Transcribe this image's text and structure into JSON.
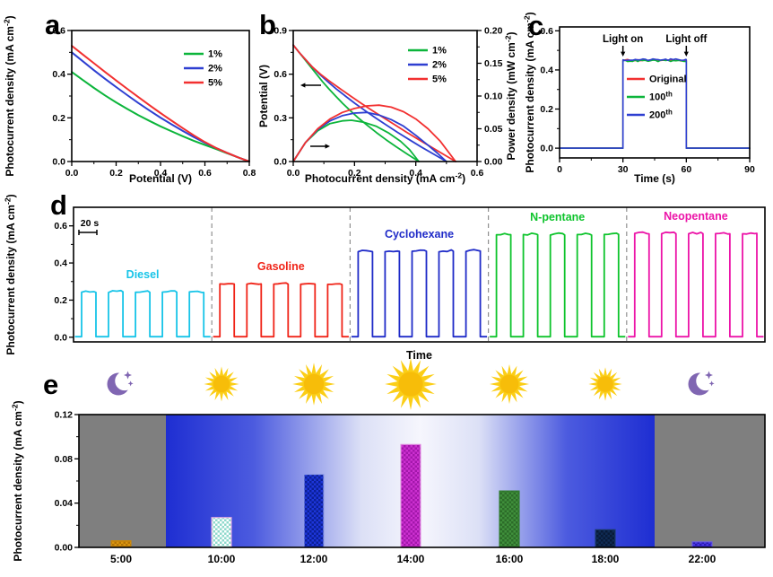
{
  "figure": {
    "panel_letters": [
      "a",
      "b",
      "c",
      "d",
      "e"
    ]
  },
  "chart_data": [
    {
      "panel_label": "a",
      "type": "line",
      "xlabel": "Potential (V)",
      "ylabel": "Photocurrent density (mA cm^{-2})",
      "xlim": [
        0,
        0.8
      ],
      "ylim": [
        0,
        0.6
      ],
      "xticks": [
        0,
        0.2,
        0.4,
        0.6,
        0.8
      ],
      "xtick_labels": [
        "0.0",
        "0.2",
        "0.4",
        "0.6",
        "0.8"
      ],
      "yticks": [
        0,
        0.2,
        0.4,
        0.6
      ],
      "ytick_labels": [
        "0.0",
        "0.2",
        "0.4",
        "0.6"
      ],
      "legend_position": "upper-right",
      "grid": false,
      "series": [
        {
          "name": "1%",
          "color": "#0CB53B",
          "points": [
            [
              0,
              0.41
            ],
            [
              0.05,
              0.373
            ],
            [
              0.1,
              0.337
            ],
            [
              0.15,
              0.303
            ],
            [
              0.2,
              0.271
            ],
            [
              0.25,
              0.241
            ],
            [
              0.3,
              0.212
            ],
            [
              0.35,
              0.186
            ],
            [
              0.4,
              0.161
            ],
            [
              0.45,
              0.138
            ],
            [
              0.5,
              0.116
            ],
            [
              0.55,
              0.095
            ],
            [
              0.6,
              0.076
            ],
            [
              0.65,
              0.057
            ],
            [
              0.7,
              0.038
            ],
            [
              0.75,
              0.019
            ],
            [
              0.8,
              0.0
            ]
          ]
        },
        {
          "name": "2%",
          "color": "#2E3FD1",
          "points": [
            [
              0,
              0.5
            ],
            [
              0.05,
              0.459
            ],
            [
              0.1,
              0.418
            ],
            [
              0.15,
              0.379
            ],
            [
              0.2,
              0.341
            ],
            [
              0.25,
              0.304
            ],
            [
              0.3,
              0.268
            ],
            [
              0.35,
              0.234
            ],
            [
              0.4,
              0.201
            ],
            [
              0.45,
              0.17
            ],
            [
              0.5,
              0.14
            ],
            [
              0.55,
              0.112
            ],
            [
              0.6,
              0.086
            ],
            [
              0.65,
              0.062
            ],
            [
              0.7,
              0.04
            ],
            [
              0.75,
              0.019
            ],
            [
              0.8,
              0.0
            ]
          ]
        },
        {
          "name": "5%",
          "color": "#F23030",
          "points": [
            [
              0,
              0.53
            ],
            [
              0.05,
              0.49
            ],
            [
              0.1,
              0.45
            ],
            [
              0.15,
              0.41
            ],
            [
              0.2,
              0.371
            ],
            [
              0.25,
              0.333
            ],
            [
              0.3,
              0.295
            ],
            [
              0.35,
              0.258
            ],
            [
              0.4,
              0.222
            ],
            [
              0.45,
              0.187
            ],
            [
              0.5,
              0.153
            ],
            [
              0.55,
              0.12
            ],
            [
              0.6,
              0.089
            ],
            [
              0.65,
              0.062
            ],
            [
              0.7,
              0.04
            ],
            [
              0.75,
              0.019
            ],
            [
              0.8,
              0.0
            ]
          ]
        }
      ]
    },
    {
      "panel_label": "b",
      "type": "line-dual-axis",
      "xlabel": "Photocurrent density (mA cm^{-2})",
      "ylabel_left": "Potential (V)",
      "ylabel_right": "Power density (mW cm^{-2})",
      "xlim": [
        0,
        0.6
      ],
      "ylim_left": [
        0,
        0.9
      ],
      "ylim_right": [
        0,
        0.2
      ],
      "xticks": [
        0,
        0.2,
        0.4,
        0.6
      ],
      "xtick_labels": [
        "0.0",
        "0.2",
        "0.4",
        "0.6"
      ],
      "yticks_left": [
        0,
        0.3,
        0.6,
        0.9
      ],
      "ytick_labels_left": [
        "0.0",
        "0.3",
        "0.6",
        "0.9"
      ],
      "yticks_right": [
        0,
        0.05,
        0.1,
        0.15,
        0.2
      ],
      "ytick_labels_right": [
        "0.00",
        "0.05",
        "0.10",
        "0.15",
        "0.20"
      ],
      "potential_series": [
        {
          "name": "1%",
          "color": "#0CB53B",
          "points": [
            [
              0,
              0.8
            ],
            [
              0.019,
              0.75
            ],
            [
              0.038,
              0.7
            ],
            [
              0.057,
              0.65
            ],
            [
              0.076,
              0.6
            ],
            [
              0.095,
              0.55
            ],
            [
              0.116,
              0.5
            ],
            [
              0.138,
              0.45
            ],
            [
              0.161,
              0.4
            ],
            [
              0.186,
              0.35
            ],
            [
              0.212,
              0.3
            ],
            [
              0.241,
              0.25
            ],
            [
              0.271,
              0.2
            ],
            [
              0.303,
              0.15
            ],
            [
              0.337,
              0.1
            ],
            [
              0.373,
              0.05
            ],
            [
              0.41,
              0.0
            ]
          ]
        },
        {
          "name": "2%",
          "color": "#2E3FD1",
          "points": [
            [
              0,
              0.8
            ],
            [
              0.019,
              0.75
            ],
            [
              0.04,
              0.7
            ],
            [
              0.062,
              0.65
            ],
            [
              0.086,
              0.6
            ],
            [
              0.112,
              0.55
            ],
            [
              0.14,
              0.5
            ],
            [
              0.17,
              0.45
            ],
            [
              0.201,
              0.4
            ],
            [
              0.234,
              0.35
            ],
            [
              0.268,
              0.3
            ],
            [
              0.304,
              0.25
            ],
            [
              0.341,
              0.2
            ],
            [
              0.379,
              0.15
            ],
            [
              0.418,
              0.1
            ],
            [
              0.459,
              0.05
            ],
            [
              0.5,
              0.0
            ]
          ]
        },
        {
          "name": "5%",
          "color": "#F23030",
          "points": [
            [
              0,
              0.8
            ],
            [
              0.019,
              0.75
            ],
            [
              0.04,
              0.7
            ],
            [
              0.062,
              0.65
            ],
            [
              0.089,
              0.6
            ],
            [
              0.12,
              0.55
            ],
            [
              0.153,
              0.5
            ],
            [
              0.187,
              0.45
            ],
            [
              0.222,
              0.4
            ],
            [
              0.258,
              0.35
            ],
            [
              0.295,
              0.3
            ],
            [
              0.333,
              0.25
            ],
            [
              0.371,
              0.2
            ],
            [
              0.41,
              0.15
            ],
            [
              0.45,
              0.1
            ],
            [
              0.49,
              0.05
            ],
            [
              0.53,
              0.0
            ]
          ]
        }
      ],
      "power_series": [
        {
          "name": "1%",
          "color": "#0CB53B",
          "points": [
            [
              0,
              0
            ],
            [
              0.04,
              0.029
            ],
            [
              0.08,
              0.047
            ],
            [
              0.12,
              0.058
            ],
            [
              0.16,
              0.062
            ],
            [
              0.19,
              0.063
            ],
            [
              0.23,
              0.06
            ],
            [
              0.27,
              0.054
            ],
            [
              0.31,
              0.044
            ],
            [
              0.35,
              0.031
            ],
            [
              0.38,
              0.018
            ],
            [
              0.41,
              0.0
            ]
          ]
        },
        {
          "name": "2%",
          "color": "#2E3FD1",
          "points": [
            [
              0,
              0
            ],
            [
              0.04,
              0.029
            ],
            [
              0.08,
              0.049
            ],
            [
              0.12,
              0.062
            ],
            [
              0.16,
              0.07
            ],
            [
              0.2,
              0.074
            ],
            [
              0.24,
              0.075
            ],
            [
              0.28,
              0.071
            ],
            [
              0.32,
              0.064
            ],
            [
              0.36,
              0.054
            ],
            [
              0.4,
              0.04
            ],
            [
              0.44,
              0.025
            ],
            [
              0.47,
              0.013
            ],
            [
              0.5,
              0.0
            ]
          ]
        },
        {
          "name": "5%",
          "color": "#F23030",
          "points": [
            [
              0,
              0
            ],
            [
              0.04,
              0.029
            ],
            [
              0.08,
              0.05
            ],
            [
              0.12,
              0.065
            ],
            [
              0.16,
              0.075
            ],
            [
              0.2,
              0.081
            ],
            [
              0.24,
              0.085
            ],
            [
              0.28,
              0.086
            ],
            [
              0.32,
              0.083
            ],
            [
              0.36,
              0.076
            ],
            [
              0.4,
              0.065
            ],
            [
              0.44,
              0.05
            ],
            [
              0.48,
              0.031
            ],
            [
              0.53,
              0.0
            ]
          ]
        }
      ]
    },
    {
      "panel_label": "c",
      "type": "step",
      "xlabel": "Time (s)",
      "ylabel": "Photocurrent density (mA cm^{-2})",
      "xlim": [
        0,
        90
      ],
      "ylim": [
        -0.05,
        0.62
      ],
      "xticks": [
        0,
        30,
        60,
        90
      ],
      "xtick_labels": [
        "0",
        "30",
        "60",
        "90"
      ],
      "yticks": [
        0,
        0.2,
        0.4,
        0.6
      ],
      "ytick_labels": [
        "0.0",
        "0.2",
        "0.4",
        "0.6"
      ],
      "light_on_time": 30,
      "light_off_time": 60,
      "annotations": {
        "on": "Light on",
        "off": "Light off"
      },
      "series": [
        {
          "name": "Original",
          "color": "#F23030",
          "plateau": 0.45
        },
        {
          "name": "100^{th}",
          "color": "#0CB53B",
          "plateau": 0.4465
        },
        {
          "name": "200^{th}",
          "color": "#2E3FD1",
          "plateau": 0.452
        }
      ]
    },
    {
      "panel_label": "d",
      "type": "pulse-train",
      "xlabel": "Time",
      "ylabel": "Photocurrent density (mA cm^{-2})",
      "ylim": [
        -0.025,
        0.7
      ],
      "yticks": [
        0,
        0.2,
        0.4,
        0.6
      ],
      "ytick_labels": [
        "0.0",
        "0.2",
        "0.4",
        "0.6"
      ],
      "scale_bar": "20 s",
      "pulses_per_section": 5,
      "sections": [
        {
          "name": "Diesel",
          "color": "#17C4E8",
          "amplitude": 0.243
        },
        {
          "name": "Gasoline",
          "color": "#F02418",
          "amplitude": 0.286
        },
        {
          "name": "Cyclohexane",
          "color": "#1F2BC8",
          "amplitude": 0.462
        },
        {
          "name": "N-pentane",
          "color": "#0EC42C",
          "amplitude": 0.552
        },
        {
          "name": "Neopentane",
          "color": "#EC14A8",
          "amplitude": 0.558
        }
      ]
    },
    {
      "panel_label": "e",
      "type": "bar",
      "ylabel": "Photocurrent density (mA cm^{-2})",
      "ylim": [
        0,
        0.12
      ],
      "yticks": [
        0,
        0.04,
        0.08,
        0.12
      ],
      "ytick_labels": [
        "0.00",
        "0.04",
        "0.08",
        "0.12"
      ],
      "categories": [
        "5:00",
        "10:00",
        "12:00",
        "14:00",
        "16:00",
        "18:00",
        "22:00"
      ],
      "values": [
        0.006,
        0.027,
        0.066,
        0.093,
        0.051,
        0.016,
        0.005
      ],
      "bar_styles": [
        {
          "fill": "#D9940E",
          "dot": "#B27408",
          "stroke": "#C8860C"
        },
        {
          "fill": "#8FD9CC",
          "dot": "#FFFFFF",
          "stroke": "#E2A9DF"
        },
        {
          "fill": "#1D36D9",
          "dot": "#0B1F96",
          "stroke": "#8E9BE8"
        },
        {
          "fill": "#CC30D0",
          "dot": "#A317AB",
          "stroke": "#E193E1"
        },
        {
          "fill": "#3F8F3B",
          "dot": "#2C6C29",
          "stroke": "#2F7A2C"
        },
        {
          "fill": "#0F2B53",
          "dot": "#081A37",
          "stroke": "#1C3B6B"
        },
        {
          "fill": "#4836E2",
          "dot": "#2B1BB4",
          "stroke": "#6A5CE8"
        }
      ],
      "icons": [
        {
          "type": "moon",
          "size": 12.5
        },
        {
          "type": "sun",
          "size": 11.5
        },
        {
          "type": "sun",
          "size": 14
        },
        {
          "type": "sun",
          "size": 17
        },
        {
          "type": "sun",
          "size": 13
        },
        {
          "type": "sun",
          "size": 11
        },
        {
          "type": "moon",
          "size": 12.5
        }
      ],
      "icon_colors": {
        "sun_core": "#F7BD09",
        "sun_rays": "#FBCE17",
        "moon": "#8066B2"
      },
      "background": {
        "night": "#7F7F7F",
        "day_edge": "#1E2ED2",
        "day_center": "#F6F6FD"
      },
      "daylight": [
        false,
        true,
        true,
        true,
        true,
        true,
        false
      ]
    }
  ]
}
